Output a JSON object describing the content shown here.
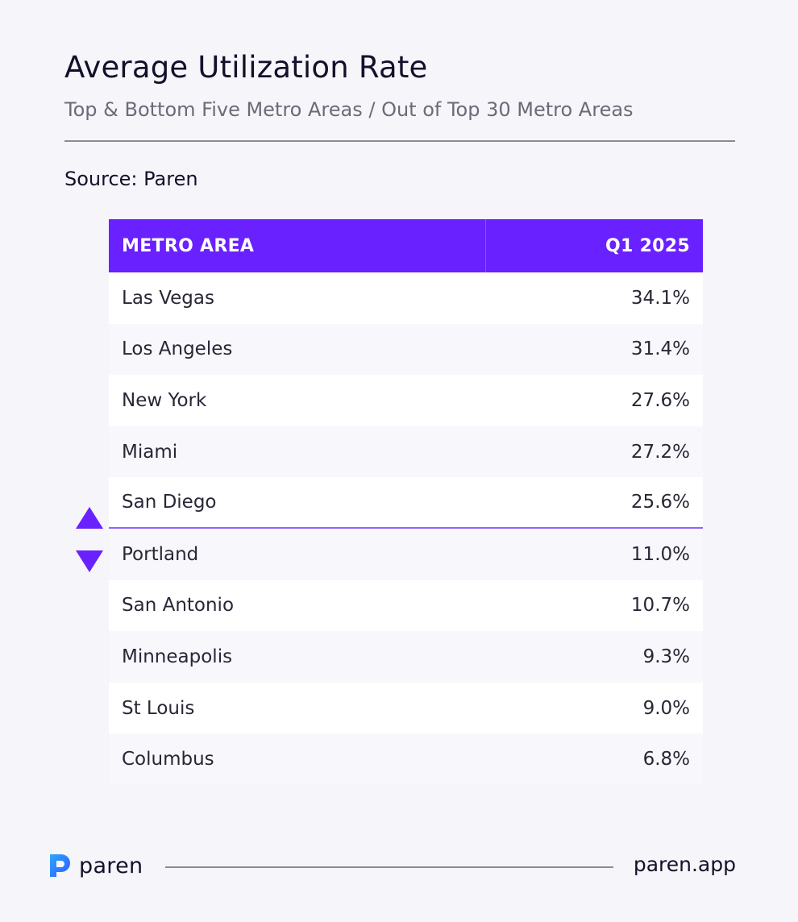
{
  "header": {
    "title": "Average Utilization Rate",
    "subtitle": "Top & Bottom Five Metro Areas / Out of Top 30 Metro Areas",
    "source": "Source: Paren"
  },
  "chart_data": {
    "type": "table",
    "title": "Average Utilization Rate",
    "subtitle": "Top & Bottom Five Metro Areas / Out of Top 30 Metro Areas",
    "columns": [
      "METRO AREA",
      "Q1 2025"
    ],
    "rows": [
      {
        "metro": "Las Vegas",
        "value": "34.1%"
      },
      {
        "metro": "Los Angeles",
        "value": "31.4%"
      },
      {
        "metro": "New York",
        "value": "27.6%"
      },
      {
        "metro": "Miami",
        "value": "27.2%"
      },
      {
        "metro": "San Diego",
        "value": "25.6%"
      },
      {
        "metro": "Portland",
        "value": "11.0%"
      },
      {
        "metro": "San Antonio",
        "value": "10.7%"
      },
      {
        "metro": "Minneapolis",
        "value": "9.3%"
      },
      {
        "metro": "St Louis",
        "value": "9.0%"
      },
      {
        "metro": "Columbus",
        "value": "6.8%"
      }
    ],
    "top_group_size": 5,
    "bottom_group_size": 5
  },
  "markers": {
    "top_icon": "triangle-up-icon",
    "bottom_icon": "triangle-down-icon"
  },
  "colors": {
    "accent": "#6a21ff",
    "background": "#f6f5f9",
    "divider": "#8d66ff"
  },
  "footer": {
    "brand": "paren",
    "logo_icon": "paren-logo-icon",
    "url": "paren.app"
  }
}
